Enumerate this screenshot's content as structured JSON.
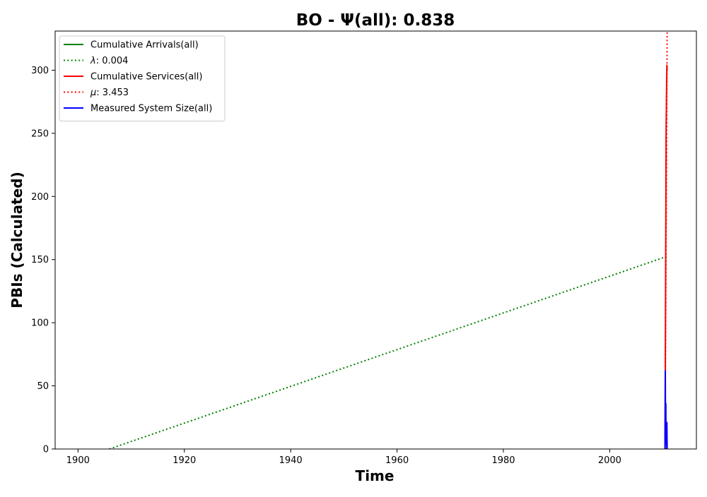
{
  "chart_data": {
    "type": "line",
    "title": "BO -  Ψ(all): 0.838",
    "xlabel": "Time",
    "ylabel": "PBIs (Calculated)",
    "xlim": [
      1895.7,
      2016.3
    ],
    "ylim": [
      0,
      331
    ],
    "xticks": [
      1900,
      1920,
      1940,
      1960,
      1980,
      2000
    ],
    "yticks": [
      0,
      50,
      100,
      150,
      200,
      250,
      300
    ],
    "grid": false,
    "legend_position": "top-left",
    "series": [
      {
        "name": "Cumulative Arrivals(all)",
        "color": "#008000",
        "style": "solid",
        "x": [
          2010.6,
          2010.7,
          2010.8
        ],
        "y": [
          0,
          1,
          2
        ]
      },
      {
        "name": "λ: 0.004",
        "label_prefix": "λ",
        "label_value": ": 0.004",
        "color": "#008000",
        "style": "dotted",
        "x": [
          1905.9,
          2010.4
        ],
        "y": [
          0,
          152
        ]
      },
      {
        "name": "Cumulative Services(all)",
        "color": "#ff0000",
        "style": "solid",
        "x": [
          2010.4,
          2010.45,
          2010.5,
          2010.55,
          2010.6,
          2010.65,
          2010.7,
          2010.75,
          2010.8
        ],
        "y": [
          0,
          60,
          120,
          180,
          250,
          270,
          290,
          304,
          300
        ]
      },
      {
        "name": "μ: 3.453",
        "label_prefix": "μ",
        "label_value": ": 3.453",
        "color": "#ff0000",
        "style": "dotted",
        "x": [
          2010.4,
          2010.8
        ],
        "y": [
          0,
          331
        ]
      },
      {
        "name": "Measured System Size(all)",
        "color": "#0000ff",
        "style": "solid",
        "x": [
          2010.4,
          2010.45,
          2010.5,
          2010.55,
          2010.6,
          2010.65,
          2010.7,
          2010.75,
          2010.8
        ],
        "y": [
          0,
          62,
          10,
          36,
          5,
          20,
          2,
          21,
          0
        ]
      }
    ]
  }
}
